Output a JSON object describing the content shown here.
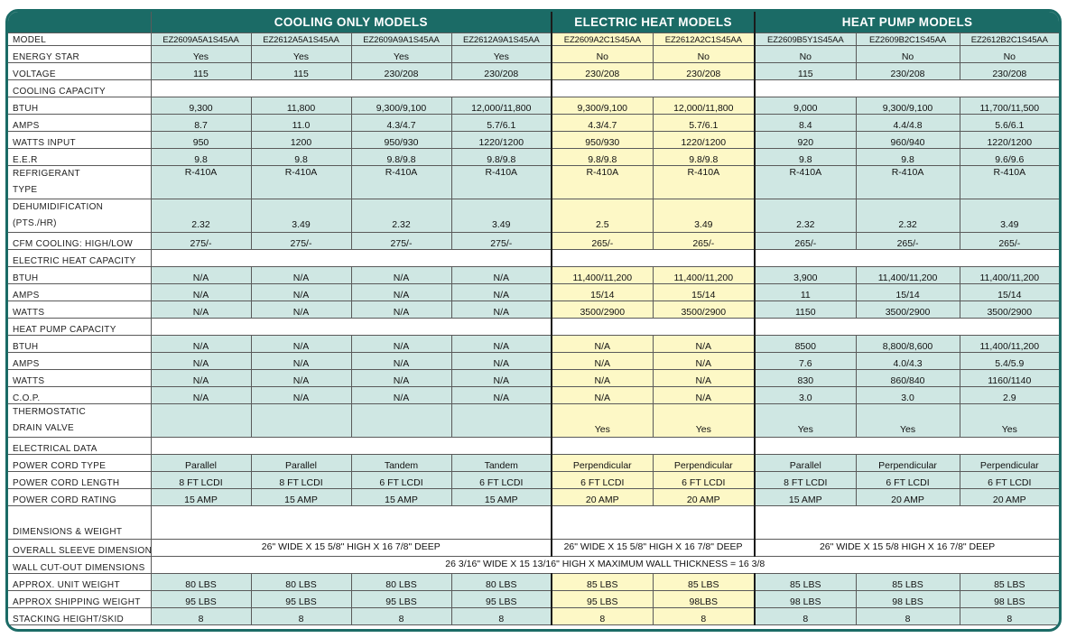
{
  "groups": {
    "cooling": "COOLING ONLY MODELS",
    "electric": "ELECTRIC HEAT MODELS",
    "heatpump": "HEAT PUMP MODELS"
  },
  "colors": {
    "header_bg": "#1b6b66",
    "cooling_bg": "#cfe7e3",
    "electric_bg": "#fdf8c6",
    "heatpump_bg": "#cfe7e3"
  },
  "rows": [
    {
      "label": "MODEL",
      "type": "model",
      "values": [
        "EZ2609A5A1S45AA",
        "EZ2612A5A1S45AA",
        "EZ2609A9A1S45AA",
        "EZ2612A9A1S45AA",
        "EZ2609A2C1S45AA",
        "EZ2612A2C1S45AA",
        "EZ2609B5Y1S45AA",
        "EZ2609B2C1S45AA",
        "EZ2612B2C1S45AA"
      ]
    },
    {
      "label": "ENERGY STAR",
      "type": "data",
      "values": [
        "Yes",
        "Yes",
        "Yes",
        "Yes",
        "No",
        "No",
        "No",
        "No",
        "No"
      ]
    },
    {
      "label": "VOLTAGE",
      "type": "data",
      "values": [
        "115",
        "115",
        "230/208",
        "230/208",
        "230/208",
        "230/208",
        "115",
        "230/208",
        "230/208"
      ]
    },
    {
      "label": "COOLING CAPACITY",
      "type": "section",
      "values": []
    },
    {
      "label": "BTUH",
      "type": "data",
      "values": [
        "9,300",
        "11,800",
        "9,300/9,100",
        "12,000/11,800",
        "9,300/9,100",
        "12,000/11,800",
        "9,000",
        "9,300/9,100",
        "11,700/11,500"
      ]
    },
    {
      "label": "AMPS",
      "type": "data",
      "values": [
        "8.7",
        "11.0",
        "4.3/4.7",
        "5.7/6.1",
        "4.3/4.7",
        "5.7/6.1",
        "8.4",
        "4.4/4.8",
        "5.6/6.1"
      ]
    },
    {
      "label": "WATTS INPUT",
      "type": "data",
      "values": [
        "950",
        "1200",
        "950/930",
        "1220/1200",
        "950/930",
        "1220/1200",
        "920",
        "960/940",
        "1220/1200"
      ]
    },
    {
      "label": "E.E.R",
      "type": "data",
      "values": [
        "9.8",
        "9.8",
        "9.8/9.8",
        "9.8/9.8",
        "9.8/9.8",
        "9.8/9.8",
        "9.8",
        "9.8",
        "9.6/9.6"
      ]
    },
    {
      "label": "REFRIGERANT",
      "label2": "TYPE",
      "type": "tall-top",
      "values": [
        "R-410A",
        "R-410A",
        "R-410A",
        "R-410A",
        "R-410A",
        "R-410A",
        "R-410A",
        "R-410A",
        "R-410A"
      ]
    },
    {
      "label": "DEHUMIDIFICATION",
      "label2": "(PTS./HR)",
      "type": "tall",
      "values": [
        "2.32",
        "3.49",
        "2.32",
        "3.49",
        "2.5",
        "3.49",
        "2.32",
        "2.32",
        "3.49"
      ]
    },
    {
      "label": "CFM COOLING: HIGH/LOW",
      "type": "data",
      "values": [
        "275/-",
        "275/-",
        "275/-",
        "275/-",
        "265/-",
        "265/-",
        "265/-",
        "265/-",
        "265/-"
      ]
    },
    {
      "label": "ELECTRIC HEAT CAPACITY",
      "type": "section",
      "values": []
    },
    {
      "label": "BTUH",
      "type": "data",
      "values": [
        "N/A",
        "N/A",
        "N/A",
        "N/A",
        "11,400/11,200",
        "11,400/11,200",
        "3,900",
        "11,400/11,200",
        "11,400/11,200"
      ]
    },
    {
      "label": "AMPS",
      "type": "data",
      "values": [
        "N/A",
        "N/A",
        "N/A",
        "N/A",
        "15/14",
        "15/14",
        "11",
        "15/14",
        "15/14"
      ]
    },
    {
      "label": "WATTS",
      "type": "data",
      "values": [
        "N/A",
        "N/A",
        "N/A",
        "N/A",
        "3500/2900",
        "3500/2900",
        "1150",
        "3500/2900",
        "3500/2900"
      ]
    },
    {
      "label": "HEAT PUMP CAPACITY",
      "type": "section",
      "values": []
    },
    {
      "label": "BTUH",
      "type": "data",
      "values": [
        "N/A",
        "N/A",
        "N/A",
        "N/A",
        "N/A",
        "N/A",
        "8500",
        "8,800/8,600",
        "11,400/11,200"
      ]
    },
    {
      "label": "AMPS",
      "type": "data",
      "values": [
        "N/A",
        "N/A",
        "N/A",
        "N/A",
        "N/A",
        "N/A",
        "7.6",
        "4.0/4.3",
        "5.4/5.9"
      ]
    },
    {
      "label": "WATTS",
      "type": "data",
      "values": [
        "N/A",
        "N/A",
        "N/A",
        "N/A",
        "N/A",
        "N/A",
        "830",
        "860/840",
        "1160/1140"
      ]
    },
    {
      "label": "C.O.P.",
      "type": "data",
      "values": [
        "N/A",
        "N/A",
        "N/A",
        "N/A",
        "N/A",
        "N/A",
        "3.0",
        "3.0",
        "2.9"
      ]
    },
    {
      "label": "THERMOSTATIC",
      "label2": "DRAIN VALVE",
      "type": "tall",
      "values": [
        "",
        "",
        "",
        "",
        "Yes",
        "Yes",
        "Yes",
        "Yes",
        "Yes"
      ]
    },
    {
      "label": "ELECTRICAL DATA",
      "type": "section",
      "values": []
    },
    {
      "label": "POWER CORD TYPE",
      "type": "data",
      "values": [
        "Parallel",
        "Parallel",
        "Tandem",
        "Tandem",
        "Perpendicular",
        "Perpendicular",
        "Parallel",
        "Perpendicular",
        "Perpendicular"
      ]
    },
    {
      "label": "POWER CORD LENGTH",
      "type": "data",
      "values": [
        "8 FT LCDI",
        "8 FT LCDI",
        "6 FT LCDI",
        "6 FT LCDI",
        "6 FT LCDI",
        "6 FT LCDI",
        "8 FT LCDI",
        "6 FT LCDI",
        "6 FT LCDI"
      ]
    },
    {
      "label": "POWER CORD RATING",
      "type": "data",
      "values": [
        "15 AMP",
        "15 AMP",
        "15 AMP",
        "15 AMP",
        "20 AMP",
        "20 AMP",
        "15 AMP",
        "20 AMP",
        "20 AMP"
      ]
    },
    {
      "label": "DIMENSIONS & WEIGHT",
      "type": "section-tall",
      "values": []
    },
    {
      "label": "OVERALL SLEEVE DIMENSIONS",
      "type": "span3",
      "values": [
        "26\" WIDE X 15 5/8\" HIGH X 16 7/8\" DEEP",
        "26\" WIDE X 15 5/8\" HIGH X 16 7/8\" DEEP",
        "26\" WIDE X 15 5/8 HIGH X 16 7/8\" DEEP"
      ]
    },
    {
      "label": "WALL CUT-OUT DIMENSIONS",
      "type": "spanall",
      "values": [
        "26 3/16\" WIDE X 15 13/16\" HIGH X MAXIMUM WALL THICKNESS = 16 3/8"
      ]
    },
    {
      "label": "APPROX. UNIT WEIGHT",
      "type": "data",
      "values": [
        "80 LBS",
        "80 LBS",
        "80 LBS",
        "80 LBS",
        "85 LBS",
        "85 LBS",
        "85 LBS",
        "85 LBS",
        "85 LBS"
      ]
    },
    {
      "label": "APPROX SHIPPING WEIGHT",
      "type": "data",
      "values": [
        "95 LBS",
        "95 LBS",
        "95 LBS",
        "95 LBS",
        "95 LBS",
        "98LBS",
        "98 LBS",
        "98 LBS",
        "98 LBS"
      ]
    },
    {
      "label": "STACKING HEIGHT/SKID",
      "type": "data",
      "values": [
        "8",
        "8",
        "8",
        "8",
        "8",
        "8",
        "8",
        "8",
        "8"
      ]
    }
  ]
}
